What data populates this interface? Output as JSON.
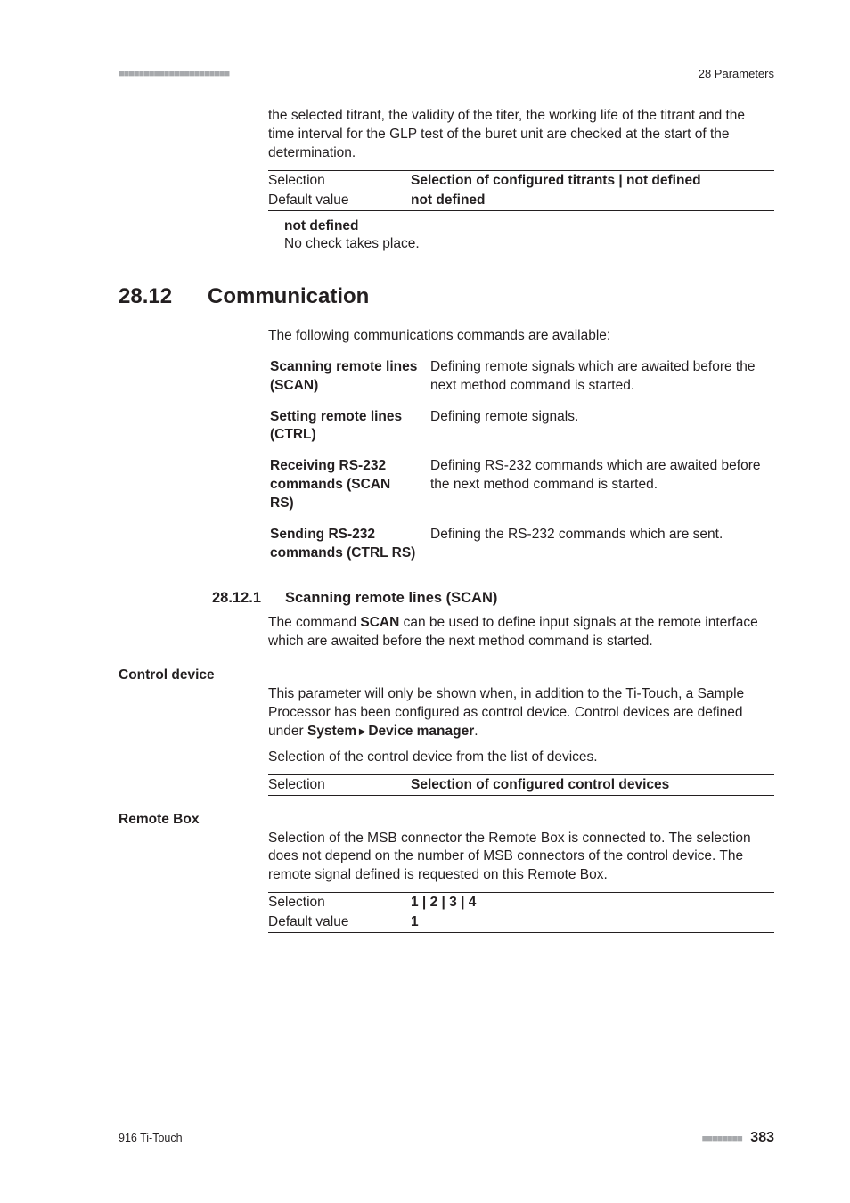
{
  "header": {
    "section": "28 Parameters"
  },
  "intro_para": "the selected titrant, the validity of the titer, the working life of the titrant and the time interval for the GLP test of the buret unit are checked at the start of the determination.",
  "titrant_table": {
    "row1": {
      "label": "Selection",
      "value": "Selection of configured titrants | not defined"
    },
    "row2": {
      "label": "Default value",
      "value": "not defined"
    }
  },
  "not_defined": {
    "term": "not defined",
    "def": "No check takes place."
  },
  "h1": {
    "num": "28.12",
    "text": "Communication"
  },
  "comm_intro": "The following communications commands are available:",
  "commands": {
    "c1": {
      "name": "Scanning remote lines (SCAN)",
      "desc": "Defining remote signals which are awaited before the next method command is started."
    },
    "c2": {
      "name": "Setting remote lines (CTRL)",
      "desc": "Defining remote signals."
    },
    "c3": {
      "name": "Receiving RS-232 commands (SCAN RS)",
      "desc": "Defining RS-232 commands which are awaited before the next method command is started."
    },
    "c4": {
      "name": "Sending RS-232 commands (CTRL RS)",
      "desc": "Defining the RS-232 commands which are sent."
    }
  },
  "h2": {
    "num": "28.12.1",
    "text": "Scanning remote lines (SCAN)"
  },
  "scan_p_pre": "The command ",
  "scan_p_bold": "SCAN",
  "scan_p_post": " can be used to define input signals at the remote interface which are awaited before the next method command is started.",
  "control_device": {
    "heading": "Control device",
    "p1_pre": "This parameter will only be shown when, in addition to the Ti-Touch, a Sample Processor has been configured as control device. Control devices are defined under ",
    "p1_bold1": "System",
    "p1_tri": " ▶ ",
    "p1_bold2": "Device manager",
    "p1_post": ".",
    "p2": "Selection of the control device from the list of devices.",
    "row": {
      "label": "Selection",
      "value": "Selection of configured control devices"
    }
  },
  "remote_box": {
    "heading": "Remote Box",
    "p1": "Selection of the MSB connector the Remote Box is connected to. The selection does not depend on the number of MSB connectors of the control device. The remote signal defined is requested on this Remote Box.",
    "row1": {
      "label": "Selection",
      "value": "1 | 2 | 3 | 4"
    },
    "row2": {
      "label": "Default value",
      "value": "1"
    }
  },
  "footer": {
    "left": "916 Ti-Touch",
    "page": "383"
  }
}
